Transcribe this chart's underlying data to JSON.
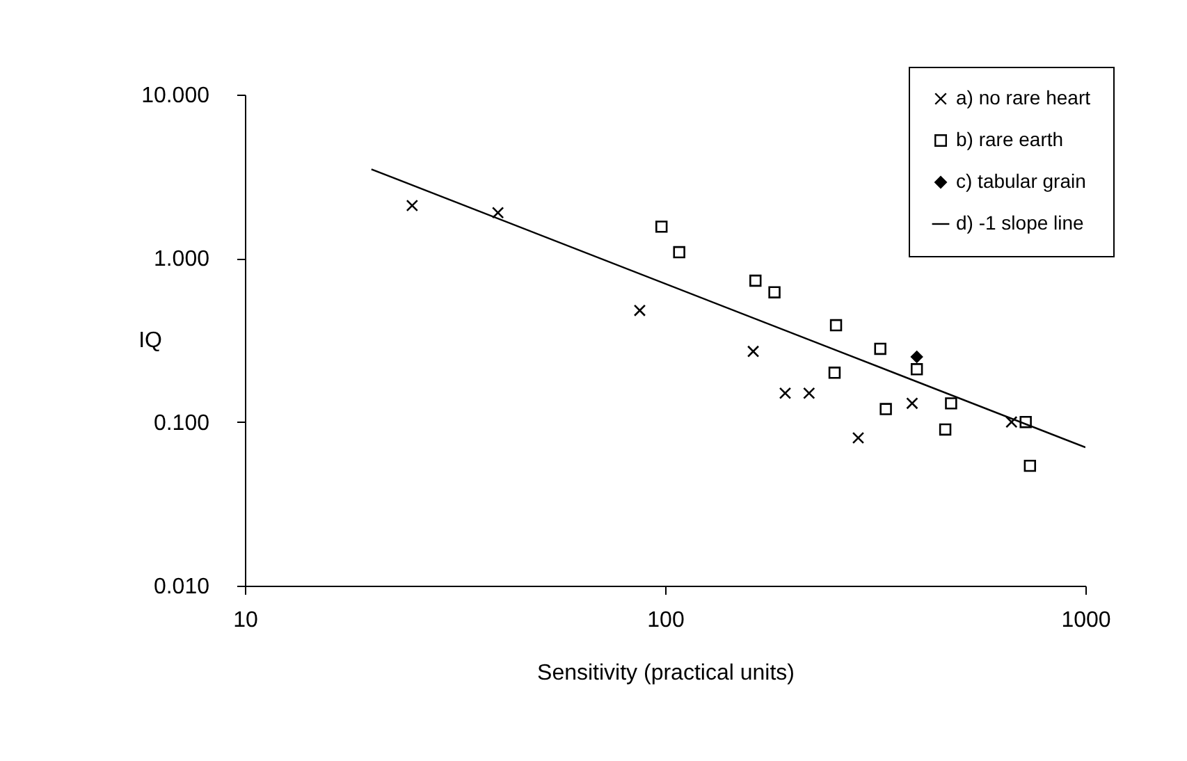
{
  "chart_data": {
    "type": "scatter",
    "xlabel": "Sensitivity (practical units)",
    "ylabel": "IQ",
    "log": "xy",
    "grid": false,
    "legend": "top right",
    "xlim": [
      10,
      1000
    ],
    "xticks": [
      10,
      100,
      1000
    ],
    "ylim": [
      0.01,
      10
    ],
    "yticks": [
      {
        "value": 0.01,
        "label": "0.010"
      },
      {
        "value": 0.1,
        "label": "0.100"
      },
      {
        "value": 1,
        "label": "1.000"
      },
      {
        "value": 10,
        "label": "10.000"
      }
    ],
    "series": [
      {
        "name": "a) no rare heart",
        "marker": "cross",
        "color": "#000000",
        "x": [
          25,
          40,
          87,
          162,
          193,
          220,
          288,
          387,
          667
        ],
        "values": [
          2.1,
          1.9,
          0.48,
          0.27,
          0.15,
          0.15,
          0.08,
          0.13,
          0.1
        ]
      },
      {
        "name": "b) rare earth",
        "marker": "square",
        "color": "#000000",
        "x": [
          98,
          108,
          164,
          182,
          253,
          255,
          325,
          335,
          397,
          464,
          479,
          721,
          738
        ],
        "values": [
          1.56,
          1.09,
          0.73,
          0.62,
          0.2,
          0.39,
          0.28,
          0.12,
          0.21,
          0.09,
          0.13,
          0.1,
          0.054
        ]
      },
      {
        "name": "c) tabular grain",
        "marker": "diamond",
        "color": "#000000",
        "x": [
          397
        ],
        "values": [
          0.25
        ]
      },
      {
        "name": "d) -1 slope line",
        "type": "line",
        "marker": "none",
        "color": "#000000",
        "x": [
          20,
          1000
        ],
        "values": [
          3.5,
          0.07
        ]
      }
    ]
  }
}
